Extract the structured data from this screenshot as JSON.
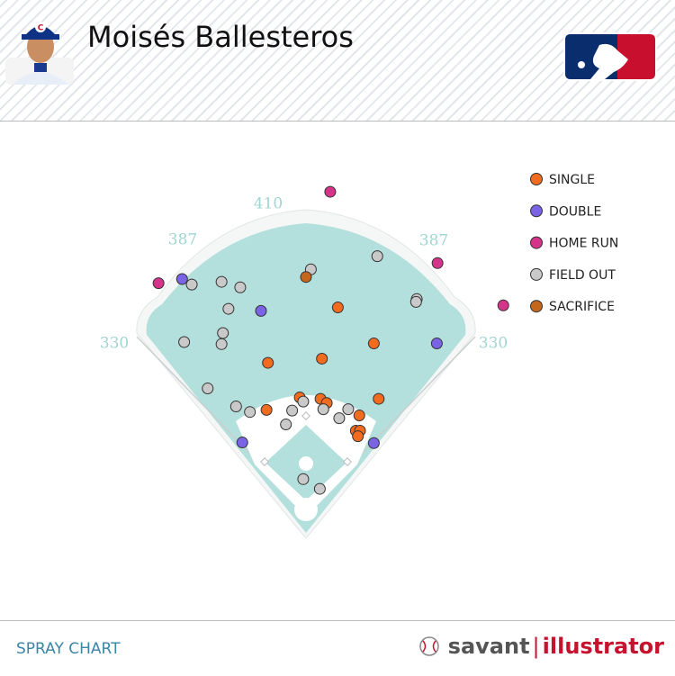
{
  "header": {
    "player_name": "Moisés Ballesteros"
  },
  "footer": {
    "label": "SPRAY CHART",
    "brand_left": "savant",
    "brand_right": "illustrator"
  },
  "chart_data": {
    "type": "scatter",
    "fence_distances": [
      330,
      387,
      410,
      387,
      330
    ],
    "xlim": [
      -312,
      312
    ],
    "ylim": [
      -32,
      488
    ],
    "legend": "top-right",
    "series": [
      {
        "name": "SINGLE",
        "color": "#f26c1f",
        "x": [
          46,
          98,
          -55,
          23,
          105,
          -57,
          -9,
          21,
          30,
          77,
          72,
          78,
          75
        ],
        "y": [
          291,
          239,
          211,
          217,
          159,
          143,
          161,
          159,
          153,
          135,
          113,
          113,
          105
        ]
      },
      {
        "name": "DOUBLE",
        "color": "#7b63e6",
        "x": [
          -179,
          -65,
          189,
          -92,
          98
        ],
        "y": [
          332,
          286,
          239,
          96,
          95
        ]
      },
      {
        "name": "HOME RUN",
        "color": "#d6338a",
        "x": [
          35,
          -213,
          190,
          285
        ],
        "y": [
          458,
          326,
          355,
          294
        ]
      },
      {
        "name": "FIELD OUT",
        "color": "#c9c9c9",
        "x": [
          7,
          103,
          -165,
          -122,
          -95,
          -112,
          160,
          159,
          -120,
          -176,
          -122,
          -142,
          -101,
          -81,
          -4,
          -20,
          -29,
          25,
          48,
          61,
          -4,
          20
        ],
        "y": [
          346,
          365,
          324,
          328,
          320,
          289,
          303,
          299,
          254,
          241,
          238,
          174,
          148,
          140,
          155,
          142,
          122,
          144,
          131,
          144,
          43,
          29
        ]
      },
      {
        "name": "SACRIFICE",
        "color": "#c4661c",
        "x": [
          0
        ],
        "y": [
          335
        ]
      }
    ]
  }
}
